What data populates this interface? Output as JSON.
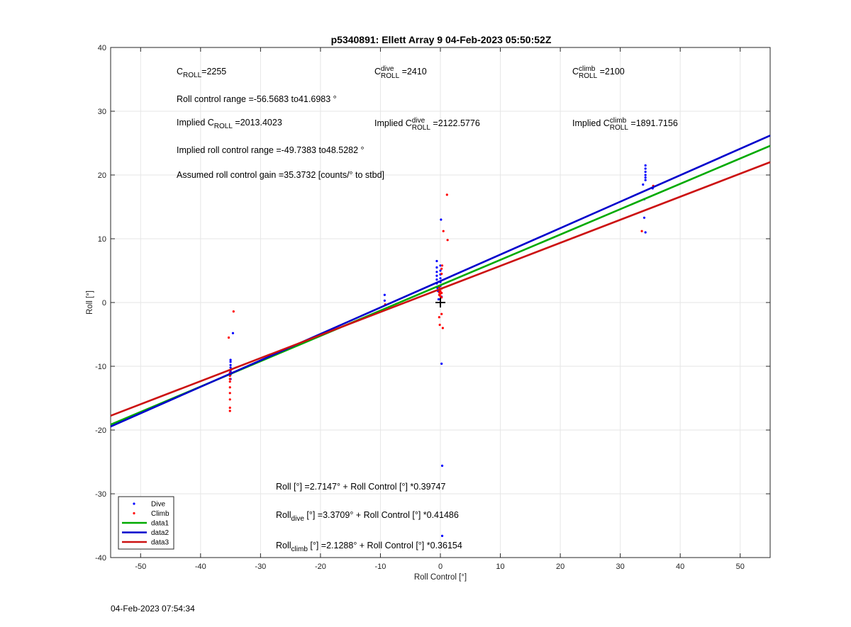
{
  "chart_data": {
    "type": "scatter",
    "title": "p5340891: Ellett Array 9 04-Feb-2023 05:50:52Z",
    "xlabel": "Roll Control [°]",
    "ylabel": "Roll [°]",
    "xlim": [
      -55,
      55
    ],
    "ylim": [
      -40,
      40
    ],
    "xticks": [
      -50,
      -40,
      -30,
      -20,
      -10,
      0,
      10,
      20,
      30,
      40,
      50
    ],
    "yticks": [
      -40,
      -30,
      -20,
      -10,
      0,
      10,
      20,
      30,
      40
    ],
    "grid": true,
    "legend_position": "bottom-left",
    "series": [
      {
        "name": "Dive",
        "kind": "points",
        "color": "#0000ff",
        "points": [
          [
            -35,
            -9
          ],
          [
            -35,
            -9.3
          ],
          [
            -35,
            -9.8
          ],
          [
            -35,
            -10.2
          ],
          [
            -35,
            -10.8
          ],
          [
            -35,
            -11.3
          ],
          [
            -35,
            -12
          ],
          [
            -34.6,
            -4.8
          ],
          [
            -9.3,
            1.2
          ],
          [
            -9.3,
            0.3
          ],
          [
            -0.6,
            6.5
          ],
          [
            -0.6,
            5.5
          ],
          [
            -0.6,
            4.8
          ],
          [
            -0.6,
            4.2
          ],
          [
            -0.6,
            3.6
          ],
          [
            -0.6,
            3.0
          ],
          [
            -0.5,
            2.3
          ],
          [
            -0.4,
            1.8
          ],
          [
            0,
            5.8
          ],
          [
            0,
            5.0
          ],
          [
            0,
            4.4
          ],
          [
            0,
            3.8
          ],
          [
            0,
            3.2
          ],
          [
            0,
            2.6
          ],
          [
            0.1,
            13
          ],
          [
            0.2,
            -9.6
          ],
          [
            0.3,
            -25.6
          ],
          [
            0.3,
            -36.6
          ],
          [
            -0.3,
            0.5
          ],
          [
            0.2,
            0.9
          ],
          [
            33.8,
            18.5
          ],
          [
            34.2,
            21.5
          ],
          [
            34.2,
            21.0
          ],
          [
            34.2,
            20.5
          ],
          [
            34.2,
            20.0
          ],
          [
            34.2,
            19.6
          ],
          [
            34.2,
            19.2
          ],
          [
            34,
            16.2
          ],
          [
            34,
            13.3
          ],
          [
            34.2,
            11
          ],
          [
            35.4,
            17.9
          ]
        ]
      },
      {
        "name": "Climb",
        "kind": "points",
        "color": "#ff0000",
        "points": [
          [
            -35.3,
            -5.5
          ],
          [
            -34.5,
            -1.4
          ],
          [
            -35.1,
            -11.5
          ],
          [
            -35.1,
            -12.4
          ],
          [
            -35.1,
            -13.3
          ],
          [
            -35.1,
            -14.2
          ],
          [
            -35.1,
            -15.2
          ],
          [
            -35.1,
            -16.5
          ],
          [
            -35.1,
            -17.0
          ],
          [
            -35.1,
            -12.0
          ],
          [
            -35.1,
            -11.0
          ],
          [
            -34.9,
            -10.5
          ],
          [
            -9.2,
            -0.3
          ],
          [
            -0.2,
            1.2
          ],
          [
            -0.2,
            1.6
          ],
          [
            -0.2,
            2.0
          ],
          [
            -0.2,
            2.4
          ],
          [
            0,
            1.0
          ],
          [
            0,
            1.4
          ],
          [
            0,
            1.8
          ],
          [
            0.2,
            2.2
          ],
          [
            0.2,
            1.5
          ],
          [
            0.2,
            0.8
          ],
          [
            0.2,
            4.5
          ],
          [
            0.2,
            5.3
          ],
          [
            0.3,
            5.8
          ],
          [
            -0.2,
            -2.3
          ],
          [
            -0.1,
            -3.5
          ],
          [
            0.4,
            -4.0
          ],
          [
            0.2,
            -1.8
          ],
          [
            0.5,
            11.2
          ],
          [
            1.1,
            16.9
          ],
          [
            1.2,
            9.8
          ],
          [
            33.6,
            11.2
          ],
          [
            35.5,
            18.3
          ]
        ]
      },
      {
        "name": "data1",
        "kind": "line",
        "color": "#00aa00",
        "intercept": 2.7147,
        "slope": 0.39747
      },
      {
        "name": "data2",
        "kind": "line",
        "color": "#0000cc",
        "intercept": 3.3709,
        "slope": 0.41486
      },
      {
        "name": "data3",
        "kind": "line",
        "color": "#cc1111",
        "intercept": 2.1288,
        "slope": 0.36154
      }
    ],
    "center_marker": {
      "x": 0,
      "y": 0,
      "symbol": "+"
    },
    "annotations": {
      "c_roll": {
        "pre": "C",
        "sub": "ROLL",
        "val": "=2255"
      },
      "c_dive": {
        "pre": "C",
        "sup": "dive",
        "sub": "ROLL",
        "val": " =2410"
      },
      "c_climb": {
        "pre": "C",
        "sup": "climb",
        "sub": "ROLL",
        "val": " =2100"
      },
      "range": "Roll control range =-56.5683 to41.6983 °",
      "implied_roll": {
        "pre": "Implied C",
        "sub": "ROLL",
        "val": " =2013.4023"
      },
      "implied_dive": {
        "pre": "Implied C",
        "sup": "dive",
        "sub": "ROLL",
        "val": " =2122.5776"
      },
      "implied_climb": {
        "pre": "Implied C",
        "sup": "climb",
        "sub": "ROLL",
        "val": " =1891.7156"
      },
      "implied_range": "Implied roll control range =-49.7383 to48.5282 °",
      "gain": "Assumed roll control gain =35.3732 [counts/° to stbd]",
      "fit_all": "Roll [°] =2.7147° + Roll Control [°] *0.39747",
      "fit_dive": {
        "pre": "Roll",
        "sub": "dive",
        "val": " [°] =3.3709° + Roll Control [°] *0.41486"
      },
      "fit_climb": {
        "pre": "Roll",
        "sub": "climb",
        "val": " [°] =2.1288° + Roll Control [°] *0.36154"
      }
    }
  },
  "footer": {
    "timestamp": "04-Feb-2023 07:54:34"
  }
}
